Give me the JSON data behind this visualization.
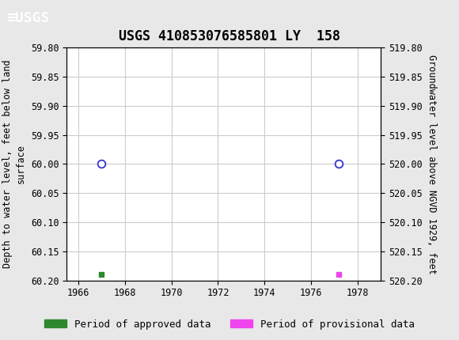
{
  "title": "USGS 410853076585801 LY  158",
  "ylabel_left": "Depth to water level, feet below land\nsurface",
  "ylabel_right": "Groundwater level above NGVD 1929, feet",
  "ylim_left": [
    59.8,
    60.2
  ],
  "ylim_right": [
    520.2,
    519.8
  ],
  "xlim": [
    1965.5,
    1979.0
  ],
  "yticks_left": [
    59.8,
    59.85,
    59.9,
    59.95,
    60.0,
    60.05,
    60.1,
    60.15,
    60.2
  ],
  "yticks_right": [
    520.2,
    520.15,
    520.1,
    520.05,
    520.0,
    519.95,
    519.9,
    519.85,
    519.8
  ],
  "xticks": [
    1966,
    1968,
    1970,
    1972,
    1974,
    1976,
    1978
  ],
  "circle_points_x": [
    1967.0,
    1977.2
  ],
  "circle_points_y": [
    60.0,
    60.0
  ],
  "square_green_x": [
    1967.0
  ],
  "square_green_y": [
    60.19
  ],
  "square_magenta_x": [
    1977.2
  ],
  "square_magenta_y": [
    60.19
  ],
  "circle_color": "#3333cc",
  "square_green_color": "#2d882d",
  "square_magenta_color": "#ee44ee",
  "bg_color": "#e8e8e8",
  "plot_bg_color": "#ffffff",
  "header_bg_color": "#1a6e35",
  "grid_color": "#cccccc",
  "legend_approved": "Period of approved data",
  "legend_provisional": "Period of provisional data",
  "title_fontsize": 12,
  "axis_label_fontsize": 8.5,
  "tick_fontsize": 8.5,
  "legend_fontsize": 9
}
